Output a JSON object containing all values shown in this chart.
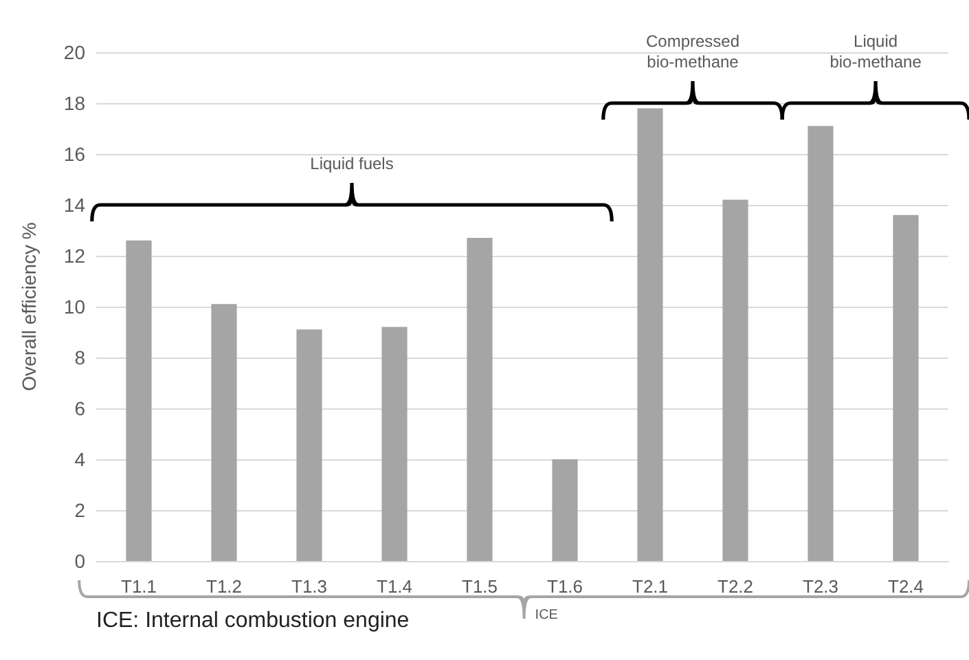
{
  "chart_data": {
    "type": "bar",
    "ylabel": "Overall efficiency %",
    "categories": [
      "T1.1",
      "T1.2",
      "T1.3",
      "T1.4",
      "T1.5",
      "T1.6",
      "T2.1",
      "T2.2",
      "T2.3",
      "T2.4"
    ],
    "values": [
      12.6,
      10.1,
      9.1,
      9.2,
      12.7,
      4.0,
      17.8,
      14.2,
      17.1,
      13.6
    ],
    "color": "#a5a5a5",
    "ylim": [
      0,
      20
    ],
    "yticks": [
      0,
      2,
      4,
      6,
      8,
      10,
      12,
      14,
      16,
      18,
      20
    ],
    "grid": "y",
    "annotations": [
      "Liquid fuels",
      "Compressed\nbio-methane",
      "Liquid\nbio-methane",
      "ICE",
      "ICE: Internal combustion engine"
    ]
  }
}
